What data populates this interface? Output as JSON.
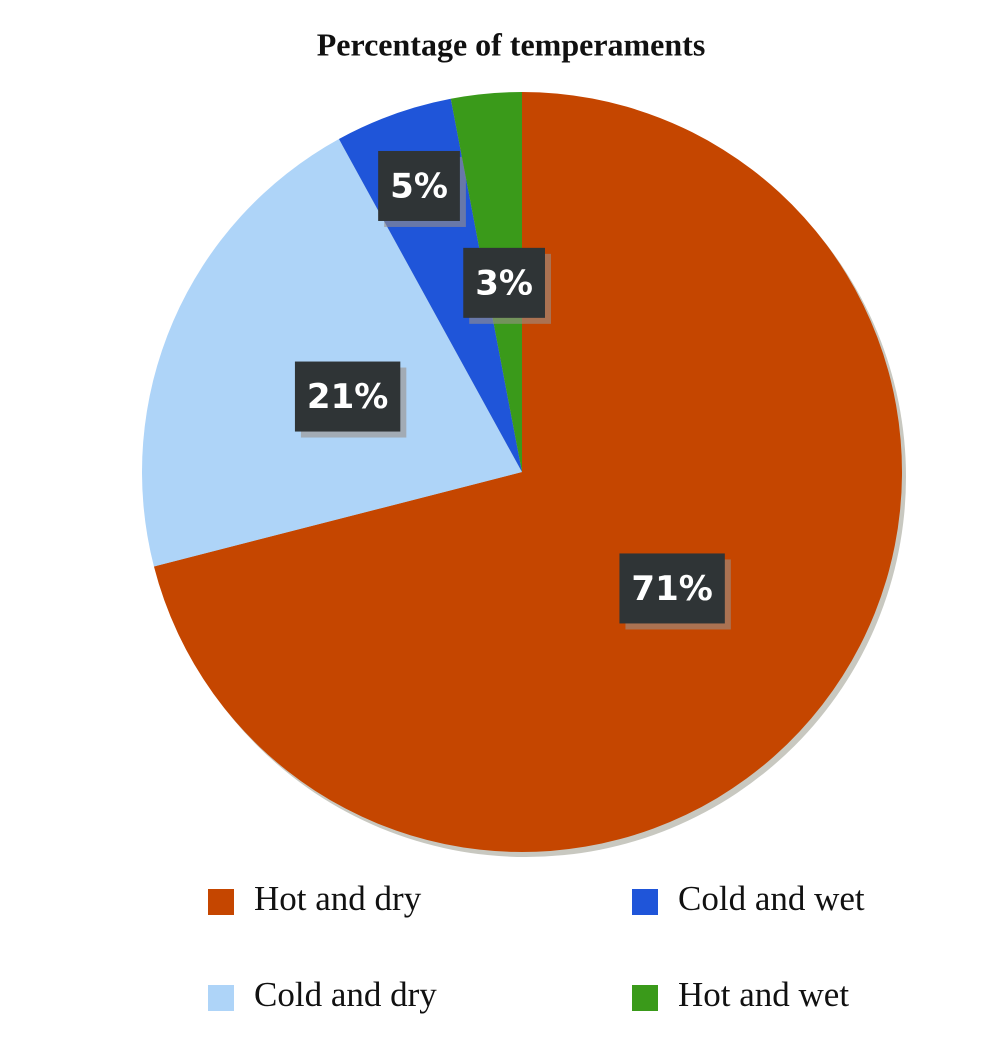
{
  "chart_data": {
    "type": "pie",
    "title": "Percentage of temperaments",
    "series": [
      {
        "name": "Hot and dry",
        "color": "#c54600",
        "values": [
          71
        ],
        "value_labels": [
          "71%"
        ]
      },
      {
        "name": "Cold and dry",
        "color": "#aed4f8",
        "values": [
          21
        ],
        "value_labels": [
          "21%"
        ]
      },
      {
        "name": "Cold and wet",
        "color": "#1f55d9",
        "values": [
          5
        ],
        "value_labels": [
          "5%"
        ]
      },
      {
        "name": "Hot and wet",
        "color": "#3a9a1a",
        "values": [
          3
        ],
        "value_labels": [
          "3%"
        ]
      }
    ]
  }
}
